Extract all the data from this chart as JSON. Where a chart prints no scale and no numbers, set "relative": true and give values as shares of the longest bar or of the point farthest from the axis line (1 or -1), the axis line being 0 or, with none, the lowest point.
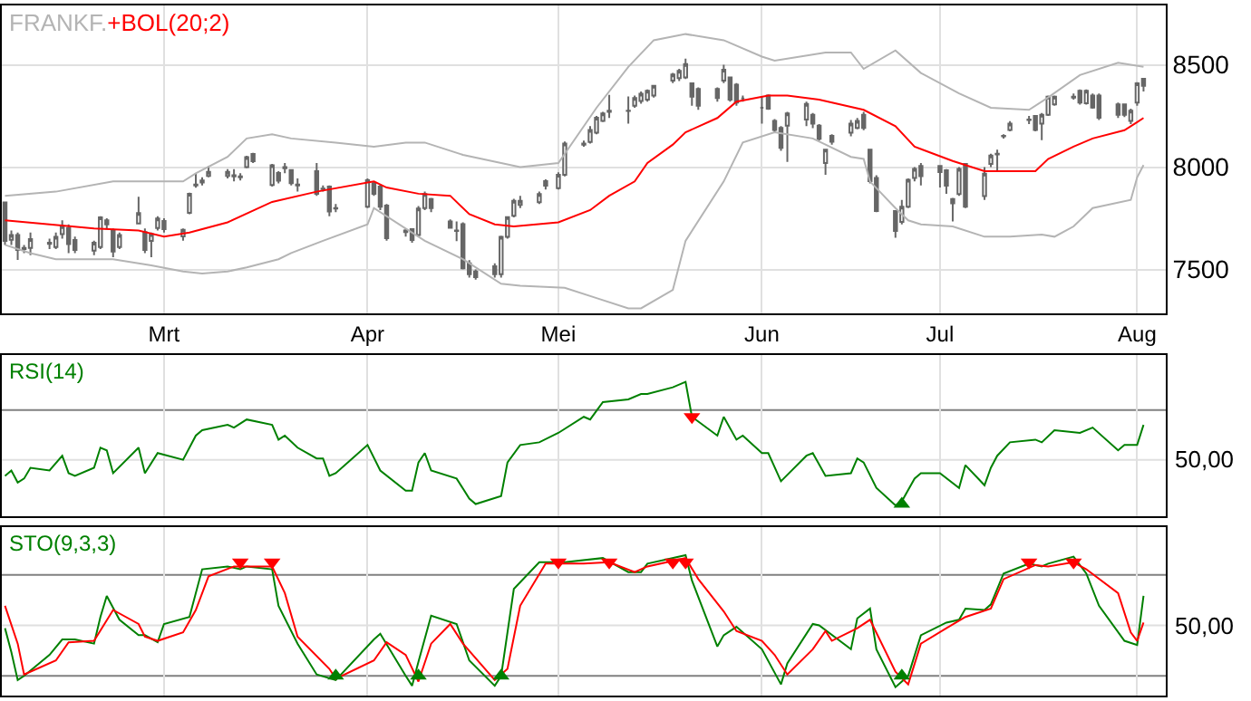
{
  "chart_data": [
    {
      "type": "candlestick",
      "title": "FRANKF.",
      "xlim": [
        "--02-03T12:00",
        "--08-05T12:00"
      ],
      "xticks": [
        {
          "value": "--03-01",
          "label": "Mrt"
        },
        {
          "value": "--04-02",
          "label": "Apr"
        },
        {
          "value": "--05-02",
          "label": "Mei"
        },
        {
          "value": "--06-03",
          "label": "Jun"
        },
        {
          "value": "--07-01",
          "label": "Jul"
        },
        {
          "value": "--08-01",
          "label": "Aug"
        }
      ],
      "ylim": [
        7286,
        8790
      ],
      "yticks": [
        7500,
        8000,
        8500
      ],
      "grid": true,
      "series": [
        {
          "type": "line",
          "color": "#b4b4b4",
          "x": [
            "--02-04",
            "--02-12",
            "--02-21",
            "--02-27",
            "--03-04",
            "--03-06",
            "--03-11",
            "--03-14",
            "--03-18",
            "--03-21",
            "--03-28",
            "--04-03",
            "--04-08",
            "--04-11",
            "--04-17",
            "--04-26",
            "--05-02",
            "--05-08",
            "--05-13",
            "--05-17",
            "--05-22",
            "--05-28",
            "--06-03",
            "--06-05",
            "--06-13",
            "--06-17",
            "--06-19",
            "--06-24",
            "--06-28",
            "--07-04",
            "--07-09",
            "--07-15",
            "--07-18",
            "--07-23",
            "--07-29",
            "--08-02"
          ],
          "values": [
            7860,
            7880,
            7930,
            7930,
            7930,
            7970,
            8050,
            8140,
            8160,
            8140,
            8120,
            8100,
            8120,
            8120,
            8060,
            8000,
            8020,
            8290,
            8490,
            8620,
            8650,
            8620,
            8540,
            8520,
            8560,
            8560,
            8480,
            8570,
            8460,
            8360,
            8290,
            8280,
            8340,
            8450,
            8510,
            8490
          ]
        },
        {
          "type": "line",
          "color": "#b4b4b4",
          "x": [
            "--02-04",
            "--02-08",
            "--02-12",
            "--02-18",
            "--02-21",
            "--02-27",
            "--03-04",
            "--03-07",
            "--03-11",
            "--03-14",
            "--03-19",
            "--03-21",
            "--03-26",
            "--04-02",
            "--04-03",
            "--04-08",
            "--04-11",
            "--04-17",
            "--04-23",
            "--04-26",
            "--05-03",
            "--05-08",
            "--05-13",
            "--05-15",
            "--05-20",
            "--05-22",
            "--05-28",
            "--05-31",
            "--06-05",
            "--06-11",
            "--06-13",
            "--06-17",
            "--06-19",
            "--06-20",
            "--06-24",
            "--06-26",
            "--06-28",
            "--07-03",
            "--07-08",
            "--07-12",
            "--07-17",
            "--07-19",
            "--07-22",
            "--07-25",
            "--07-31",
            "--08-01",
            "--08-02"
          ],
          "values": [
            7620,
            7580,
            7550,
            7550,
            7550,
            7520,
            7490,
            7480,
            7490,
            7510,
            7550,
            7580,
            7640,
            7720,
            7800,
            7700,
            7640,
            7550,
            7430,
            7420,
            7410,
            7360,
            7310,
            7310,
            7400,
            7640,
            7930,
            8120,
            8170,
            8140,
            8110,
            8050,
            8040,
            7930,
            7800,
            7740,
            7720,
            7710,
            7660,
            7660,
            7670,
            7660,
            7710,
            7800,
            7840,
            7950,
            8010
          ]
        },
        {
          "type": "line",
          "name": "+BOL(20;2)",
          "color": "#ff0000",
          "x": [
            "--02-04",
            "--02-11",
            "--02-18",
            "--02-25",
            "--03-01",
            "--03-05",
            "--03-11",
            "--03-18",
            "--03-25",
            "--04-03",
            "--04-05",
            "--04-10",
            "--04-15",
            "--04-18",
            "--04-22",
            "--04-25",
            "--05-02",
            "--05-07",
            "--05-10",
            "--05-14",
            "--05-16",
            "--05-20",
            "--05-22",
            "--05-27",
            "--05-30",
            "--06-04",
            "--06-07",
            "--06-12",
            "--06-19",
            "--06-24",
            "--06-27",
            "--07-03",
            "--07-08",
            "--07-11",
            "--07-16",
            "--07-18",
            "--07-22",
            "--07-25",
            "--07-30",
            "--08-01",
            "--08-02"
          ],
          "values": [
            7740,
            7720,
            7700,
            7690,
            7660,
            7680,
            7730,
            7830,
            7880,
            7930,
            7900,
            7870,
            7860,
            7770,
            7720,
            7710,
            7730,
            7790,
            7860,
            7930,
            8020,
            8110,
            8170,
            8240,
            8320,
            8350,
            8350,
            8330,
            8280,
            8200,
            8100,
            8030,
            7980,
            7980,
            7980,
            8040,
            8100,
            8140,
            8180,
            8220,
            8240
          ]
        },
        {
          "type": "candlestick",
          "color": "#666666",
          "x": [
            "--02-04",
            "--02-05",
            "--02-06",
            "--02-07",
            "--02-08",
            "--02-11",
            "--02-12",
            "--02-13",
            "--02-14",
            "--02-15",
            "--02-18",
            "--02-19",
            "--02-20",
            "--02-21",
            "--02-22",
            "--02-25",
            "--02-26",
            "--02-27",
            "--02-28",
            "--03-01",
            "--03-04",
            "--03-05",
            "--03-06",
            "--03-07",
            "--03-08",
            "--03-11",
            "--03-12",
            "--03-13",
            "--03-14",
            "--03-15",
            "--03-18",
            "--03-19",
            "--03-20",
            "--03-21",
            "--03-22",
            "--03-25",
            "--03-26",
            "--03-27",
            "--03-28",
            "--04-02",
            "--04-03",
            "--04-04",
            "--04-05",
            "--04-08",
            "--04-09",
            "--04-10",
            "--04-11",
            "--04-12",
            "--04-15",
            "--04-16",
            "--04-17",
            "--04-18",
            "--04-19",
            "--04-22",
            "--04-23",
            "--04-24",
            "--04-25",
            "--04-26",
            "--04-29",
            "--04-30",
            "--05-02",
            "--05-03",
            "--05-06",
            "--05-07",
            "--05-08",
            "--05-09",
            "--05-10",
            "--05-13",
            "--05-14",
            "--05-15",
            "--05-16",
            "--05-17",
            "--05-20",
            "--05-21",
            "--05-22",
            "--05-23",
            "--05-24",
            "--05-27",
            "--05-28",
            "--05-29",
            "--05-30",
            "--05-31",
            "--06-03",
            "--06-04",
            "--06-05",
            "--06-06",
            "--06-07",
            "--06-10",
            "--06-11",
            "--06-12",
            "--06-13",
            "--06-14",
            "--06-17",
            "--06-18",
            "--06-19",
            "--06-20",
            "--06-21",
            "--06-24",
            "--06-25",
            "--06-26",
            "--06-27",
            "--06-28",
            "--07-01",
            "--07-02",
            "--07-03",
            "--07-04",
            "--07-05",
            "--07-08",
            "--07-09",
            "--07-10",
            "--07-11",
            "--07-12",
            "--07-15",
            "--07-16",
            "--07-17",
            "--07-18",
            "--07-19",
            "--07-22",
            "--07-23",
            "--07-24",
            "--07-25",
            "--07-26",
            "--07-29",
            "--07-30",
            "--07-31",
            "--08-01",
            "--08-02"
          ],
          "ohlc": [
            [
              7827,
              7830,
              7620,
              7639
            ],
            [
              7645,
              7690,
              7620,
              7668
            ],
            [
              7668,
              7680,
              7546,
              7595
            ],
            [
              7600,
              7620,
              7580,
              7605
            ],
            [
              7605,
              7680,
              7570,
              7648
            ],
            [
              7625,
              7650,
              7600,
              7630
            ],
            [
              7610,
              7680,
              7600,
              7659
            ],
            [
              7673,
              7740,
              7650,
              7711
            ],
            [
              7702,
              7720,
              7580,
              7624
            ],
            [
              7644,
              7660,
              7580,
              7595
            ],
            [
              7592,
              7640,
              7570,
              7630
            ],
            [
              7610,
              7760,
              7600,
              7754
            ],
            [
              7740,
              7750,
              7700,
              7720
            ],
            [
              7688,
              7700,
              7560,
              7587
            ],
            [
              7610,
              7680,
              7600,
              7668
            ],
            [
              7725,
              7855,
              7720,
              7775
            ],
            [
              7682,
              7700,
              7580,
              7595
            ],
            [
              7639,
              7680,
              7560,
              7673
            ],
            [
              7702,
              7760,
              7690,
              7749
            ],
            [
              7737,
              7750,
              7680,
              7697
            ],
            [
              7662,
              7700,
              7640,
              7694
            ],
            [
              7777,
              7875,
              7770,
              7870
            ],
            [
              7910,
              7971,
              7899,
              7915
            ],
            [
              7925,
              7950,
              7910,
              7935
            ],
            [
              7957,
              8006,
              7950,
              7977
            ],
            [
              7957,
              7990,
              7945,
              7977
            ],
            [
              7955,
              7990,
              7930,
              7960
            ],
            [
              7955,
              7970,
              7935,
              7950
            ],
            [
              8000,
              8055,
              7995,
              8049
            ],
            [
              8064,
              8070,
              8020,
              8029
            ],
            [
              7913,
              8015,
              7905,
              8009
            ],
            [
              7971,
              7980,
              7920,
              7934
            ],
            [
              7995,
              8020,
              7970,
              8000
            ],
            [
              7986,
              7990,
              7910,
              7922
            ],
            [
              7915,
              7945,
              7880,
              7910
            ],
            [
              7980,
              8020,
              7860,
              7870
            ],
            [
              7895,
              7910,
              7880,
              7893
            ],
            [
              7905,
              7910,
              7760,
              7783
            ],
            [
              7800,
              7820,
              7780,
              7798
            ],
            [
              7806,
              7945,
              7800,
              7936
            ],
            [
              7922,
              7930,
              7860,
              7870
            ],
            [
              7905,
              7915,
              7790,
              7806
            ],
            [
              7812,
              7820,
              7640,
              7653
            ],
            [
              7690,
              7700,
              7660,
              7682
            ],
            [
              7697,
              7700,
              7630,
              7644
            ],
            [
              7668,
              7810,
              7660,
              7798
            ],
            [
              7800,
              7880,
              7790,
              7868
            ],
            [
              7844,
              7850,
              7780,
              7800
            ],
            [
              7735,
              7745,
              7700,
              7703
            ],
            [
              7690,
              7735,
              7638,
              7688
            ],
            [
              7721,
              7730,
              7500,
              7506
            ],
            [
              7530,
              7545,
              7460,
              7477
            ],
            [
              7490,
              7500,
              7450,
              7462
            ],
            [
              7515,
              7530,
              7460,
              7477
            ],
            [
              7477,
              7665,
              7460,
              7659
            ],
            [
              7659,
              7760,
              7650,
              7756
            ],
            [
              7762,
              7845,
              7755,
              7835
            ],
            [
              7815,
              7860,
              7800,
              7835
            ],
            [
              7829,
              7880,
              7820,
              7868
            ],
            [
              7932,
              7940,
              7890,
              7909
            ],
            [
              7897,
              7975,
              7890,
              7962
            ],
            [
              7962,
              8125,
              7955,
              8115
            ],
            [
              8110,
              8130,
              8100,
              8115
            ],
            [
              8123,
              8200,
              8115,
              8182
            ],
            [
              8168,
              8250,
              8160,
              8241
            ],
            [
              8226,
              8270,
              8220,
              8262
            ],
            [
              8270,
              8353,
              8240,
              8276
            ],
            [
              8276,
              8345,
              8212,
              8274
            ],
            [
              8300,
              8350,
              8290,
              8338
            ],
            [
              8323,
              8370,
              8310,
              8359
            ],
            [
              8330,
              8380,
              8320,
              8373
            ],
            [
              8350,
              8400,
              8340,
              8397
            ],
            [
              8423,
              8460,
              8410,
              8453
            ],
            [
              8435,
              8480,
              8420,
              8470
            ],
            [
              8438,
              8530,
              8430,
              8503
            ],
            [
              8409,
              8410,
              8300,
              8344
            ],
            [
              8382,
              8390,
              8280,
              8300
            ],
            [
              8382,
              8390,
              8320,
              8338
            ],
            [
              8423,
              8500,
              8410,
              8476
            ],
            [
              8438,
              8440,
              8320,
              8330
            ],
            [
              8403,
              8410,
              8300,
              8315
            ],
            [
              8335,
              8350,
              8320,
              8335
            ],
            [
              8290,
              8344,
              8212,
              8290
            ],
            [
              8350,
              8355,
              8280,
              8285
            ],
            [
              8226,
              8235,
              8170,
              8182
            ],
            [
              8191,
              8200,
              8080,
              8094
            ],
            [
              8203,
              8270,
              8026,
              8262
            ],
            [
              8232,
              8320,
              8200,
              8309
            ],
            [
              8256,
              8265,
              8190,
              8212
            ],
            [
              8203,
              8210,
              8130,
              8138
            ],
            [
              8020,
              8090,
              7962,
              8085
            ],
            [
              8153,
              8160,
              8110,
              8124
            ],
            [
              8168,
              8230,
              8150,
              8212
            ],
            [
              8191,
              8240,
              8185,
              8226
            ],
            [
              8256,
              8270,
              8180,
              8191
            ],
            [
              8085,
              8090,
              7920,
              7932
            ],
            [
              7947,
              7960,
              7780,
              7785
            ],
            [
              7785,
              7790,
              7655,
              7688
            ],
            [
              7732,
              7840,
              7720,
              7806
            ],
            [
              7806,
              7945,
              7800,
              7938
            ],
            [
              7947,
              8000,
              7930,
              7991
            ],
            [
              8006,
              8020,
              7910,
              7956
            ],
            [
              8006,
              8010,
              7900,
              7976
            ],
            [
              7985,
              7990,
              7870,
              7909
            ],
            [
              7844,
              7850,
              7735,
              7823
            ],
            [
              7868,
              8000,
              7860,
              7991
            ],
            [
              8015,
              8020,
              7800,
              7806
            ],
            [
              7859,
              8000,
              7840,
              7968
            ],
            [
              8015,
              8065,
              8000,
              8056
            ],
            [
              8062,
              8085,
              7985,
              8065
            ],
            [
              8150,
              8160,
              8140,
              8153
            ],
            [
              8182,
              8225,
              8175,
              8212
            ],
            [
              8230,
              8250,
              8210,
              8232
            ],
            [
              8250,
              8255,
              8175,
              8182
            ],
            [
              8212,
              8265,
              8132,
              8256
            ],
            [
              8256,
              8350,
              8250,
              8344
            ],
            [
              8306,
              8350,
              8300,
              8344
            ],
            [
              8340,
              8360,
              8330,
              8344
            ],
            [
              8373,
              8380,
              8305,
              8315
            ],
            [
              8312,
              8380,
              8305,
              8373
            ],
            [
              8350,
              8360,
              8285,
              8291
            ],
            [
              8350,
              8360,
              8230,
              8241
            ],
            [
              8306,
              8315,
              8240,
              8256
            ],
            [
              8306,
              8310,
              8245,
              8256
            ],
            [
              8226,
              8285,
              8210,
              8276
            ],
            [
              8315,
              8415,
              8300,
              8409
            ],
            [
              8432,
              8435,
              8370,
              8397
            ]
          ]
        }
      ]
    },
    {
      "type": "line",
      "title": "RSI(14)",
      "relative": true,
      "xlim": [
        "--02-03T12:00",
        "--08-05T12:00"
      ],
      "xticks": [
        {
          "value": "--03-01",
          "label": "Mrt"
        },
        {
          "value": "--04-02",
          "label": "Apr"
        },
        {
          "value": "--05-02",
          "label": "Mei"
        },
        {
          "value": "--06-03",
          "label": "Jun"
        },
        {
          "value": "--07-01",
          "label": "Jul"
        },
        {
          "value": "--08-01",
          "label": "Aug"
        }
      ],
      "grid": "x",
      "tick_labels": false,
      "ref_lines": [
        {
          "axis": "y",
          "value": 0.79,
          "color": "#808080"
        },
        {
          "axis": "y",
          "value": 0.42,
          "color": "#e0e0e0"
        }
      ],
      "annotations": [
        "50,00"
      ],
      "series": [
        {
          "color": "#008000",
          "x": [
            "--02-04",
            "--02-05",
            "--02-06",
            "--02-07",
            "--02-08",
            "--02-11",
            "--02-13",
            "--02-14",
            "--02-15",
            "--02-18",
            "--02-19",
            "--02-20",
            "--02-21",
            "--02-25",
            "--02-26",
            "--02-28",
            "--03-04",
            "--03-06",
            "--03-07",
            "--03-11",
            "--03-12",
            "--03-14",
            "--03-18",
            "--03-19",
            "--03-20",
            "--03-22",
            "--03-25",
            "--03-26",
            "--03-27",
            "--03-28",
            "--04-02",
            "--04-04",
            "--04-08",
            "--04-09",
            "--04-10",
            "--04-11",
            "--04-12",
            "--04-16",
            "--04-18",
            "--04-19",
            "--04-23",
            "--04-24",
            "--04-26",
            "--04-29",
            "--05-02",
            "--05-06",
            "--05-07",
            "--05-09",
            "--05-13",
            "--05-15",
            "--05-16",
            "--05-20",
            "--05-22",
            "--05-23",
            "--05-27",
            "--05-28",
            "--05-30",
            "--05-31",
            "--06-03",
            "--06-04",
            "--06-06",
            "--06-10",
            "--06-11",
            "--06-13",
            "--06-17",
            "--06-18",
            "--06-19",
            "--06-21",
            "--06-24",
            "--06-25",
            "--06-27",
            "--06-28",
            "--07-01",
            "--07-04",
            "--07-05",
            "--07-08",
            "--07-09",
            "--07-10",
            "--07-12",
            "--07-16",
            "--07-17",
            "--07-19",
            "--07-23",
            "--07-25",
            "--07-29",
            "--07-30",
            "--08-01",
            "--08-02"
          ],
          "values": [
            0.3,
            0.34,
            0.25,
            0.28,
            0.36,
            0.34,
            0.45,
            0.32,
            0.3,
            0.36,
            0.51,
            0.49,
            0.32,
            0.51,
            0.32,
            0.47,
            0.42,
            0.6,
            0.64,
            0.68,
            0.66,
            0.72,
            0.68,
            0.57,
            0.6,
            0.51,
            0.43,
            0.43,
            0.3,
            0.32,
            0.53,
            0.34,
            0.19,
            0.19,
            0.4,
            0.47,
            0.34,
            0.28,
            0.13,
            0.09,
            0.15,
            0.4,
            0.53,
            0.55,
            0.62,
            0.74,
            0.72,
            0.85,
            0.87,
            0.91,
            0.91,
            0.96,
            1,
            0.74,
            0.6,
            0.74,
            0.57,
            0.6,
            0.47,
            0.47,
            0.26,
            0.45,
            0.47,
            0.3,
            0.32,
            0.43,
            0.4,
            0.21,
            0.08,
            0.11,
            0.28,
            0.32,
            0.32,
            0.21,
            0.38,
            0.23,
            0.36,
            0.45,
            0.55,
            0.57,
            0.55,
            0.64,
            0.62,
            0.66,
            0.49,
            0.53,
            0.53,
            0.68
          ]
        },
        {
          "type": "scatter",
          "marker": "triangle",
          "color": "#ff0000",
          "x": [
            "--05-23"
          ],
          "values": [
            0.74
          ]
        },
        {
          "type": "scatter",
          "marker": "triangle",
          "color": "#008000",
          "x": [
            "--06-25"
          ],
          "values": [
            0.09
          ]
        }
      ]
    },
    {
      "type": "line",
      "title": "STO(9,3,3)",
      "relative": true,
      "xlim": [
        "--02-03T12:00",
        "--08-05T12:00"
      ],
      "xticks": [
        {
          "value": "--03-01",
          "label": "Mrt"
        },
        {
          "value": "--04-02",
          "label": "Apr"
        },
        {
          "value": "--05-02",
          "label": "Mei"
        },
        {
          "value": "--06-03",
          "label": "Jun"
        },
        {
          "value": "--07-01",
          "label": "Jul"
        },
        {
          "value": "--08-01",
          "label": "Aug"
        }
      ],
      "grid": "x",
      "tick_labels": false,
      "ref_lines": [
        {
          "axis": "y",
          "value": 0.86,
          "color": "#808080"
        },
        {
          "axis": "y",
          "value": 0.14,
          "color": "#808080"
        },
        {
          "axis": "y",
          "value": 0.5,
          "color": "#e0e0e0"
        }
      ],
      "annotations": [
        "50,00"
      ],
      "series": [
        {
          "color": "#008000",
          "x": [
            "--02-04",
            "--02-05",
            "--02-06",
            "--02-07",
            "--02-11",
            "--02-13",
            "--02-15",
            "--02-18",
            "--02-19",
            "--02-20",
            "--02-22",
            "--02-25",
            "--02-26",
            "--02-28",
            "--03-01",
            "--03-05",
            "--03-07",
            "--03-11",
            "--03-13",
            "--03-14",
            "--03-18",
            "--03-19",
            "--03-22",
            "--03-25",
            "--03-28",
            "--04-03",
            "--04-04",
            "--04-08",
            "--04-09",
            "--04-10",
            "--04-12",
            "--04-16",
            "--04-18",
            "--04-22",
            "--04-23",
            "--04-25",
            "--04-29",
            "--05-03",
            "--05-09",
            "--05-13",
            "--05-15",
            "--05-16",
            "--05-22",
            "--05-23",
            "--05-27",
            "--05-28",
            "--05-30",
            "--06-03",
            "--06-06",
            "--06-07",
            "--06-11",
            "--06-12",
            "--06-17",
            "--06-18",
            "--06-20",
            "--06-21",
            "--06-24",
            "--06-26",
            "--06-28",
            "--07-02",
            "--07-04",
            "--07-05",
            "--07-08",
            "--07-09",
            "--07-11",
            "--07-15",
            "--07-17",
            "--07-18",
            "--07-22",
            "--07-24",
            "--07-26",
            "--07-30",
            "--08-01",
            "--08-02"
          ],
          "values": [
            0.48,
            0.31,
            0.11,
            0.14,
            0.29,
            0.4,
            0.4,
            0.37,
            0.56,
            0.71,
            0.54,
            0.43,
            0.43,
            0.38,
            0.51,
            0.56,
            0.9,
            0.92,
            0.9,
            0.92,
            0.9,
            0.64,
            0.37,
            0.15,
            0.11,
            0.4,
            0.44,
            0.14,
            0.07,
            0.24,
            0.57,
            0.51,
            0.25,
            0.07,
            0.14,
            0.76,
            0.95,
            0.95,
            0.98,
            0.88,
            0.88,
            0.94,
            1,
            0.82,
            0.35,
            0.43,
            0.49,
            0.33,
            0.08,
            0.23,
            0.51,
            0.5,
            0.33,
            0.55,
            0.62,
            0.33,
            0.06,
            0.14,
            0.43,
            0.52,
            0.54,
            0.62,
            0.61,
            0.65,
            0.87,
            0.94,
            0.92,
            0.94,
            0.99,
            0.87,
            0.64,
            0.39,
            0.36,
            0.71
          ]
        },
        {
          "color": "#ff0000",
          "x": [
            "--02-04",
            "--02-06",
            "--02-07",
            "--02-12",
            "--02-14",
            "--02-18",
            "--02-21",
            "--02-25",
            "--02-26",
            "--02-28",
            "--03-04",
            "--03-06",
            "--03-08",
            "--03-12",
            "--03-15",
            "--03-18",
            "--03-20",
            "--03-22",
            "--03-27",
            "--03-28",
            "--04-03",
            "--04-05",
            "--04-08",
            "--04-10",
            "--04-12",
            "--04-15",
            "--04-17",
            "--04-22",
            "--04-24",
            "--04-26",
            "--04-30",
            "--05-06",
            "--05-10",
            "--05-14",
            "--05-16",
            "--05-22",
            "--05-24",
            "--05-28",
            "--05-30",
            "--06-03",
            "--06-05",
            "--06-07",
            "--06-11",
            "--06-13",
            "--06-14",
            "--06-18",
            "--06-20",
            "--06-24",
            "--06-26",
            "--06-28",
            "--07-02",
            "--07-05",
            "--07-09",
            "--07-11",
            "--07-16",
            "--07-18",
            "--07-22",
            "--07-24",
            "--07-29",
            "--07-31",
            "--08-01",
            "--08-02"
          ],
          "values": [
            0.64,
            0.37,
            0.15,
            0.25,
            0.38,
            0.39,
            0.61,
            0.51,
            0.42,
            0.39,
            0.45,
            0.61,
            0.85,
            0.92,
            0.92,
            0.92,
            0.73,
            0.42,
            0.19,
            0.12,
            0.25,
            0.38,
            0.29,
            0.1,
            0.37,
            0.51,
            0.37,
            0.11,
            0.19,
            0.64,
            0.94,
            0.94,
            0.95,
            0.88,
            0.92,
            0.98,
            0.83,
            0.6,
            0.46,
            0.39,
            0.29,
            0.15,
            0.33,
            0.46,
            0.39,
            0.48,
            0.54,
            0.17,
            0.08,
            0.37,
            0.48,
            0.56,
            0.62,
            0.83,
            0.93,
            0.92,
            0.95,
            0.9,
            0.73,
            0.45,
            0.39,
            0.52
          ]
        },
        {
          "type": "scatter",
          "marker": "triangle",
          "color": "#ff0000",
          "x": [
            "--03-13",
            "--03-18",
            "--05-02",
            "--05-10",
            "--05-20",
            "--05-22",
            "--07-15",
            "--07-22"
          ],
          "values": [
            0.95,
            0.95,
            0.95,
            0.95,
            0.95,
            0.95,
            0.95,
            0.95
          ]
        },
        {
          "type": "scatter",
          "marker": "triangle",
          "color": "#008000",
          "x": [
            "--03-28",
            "--04-10",
            "--04-23",
            "--06-25"
          ],
          "values": [
            0.14,
            0.14,
            0.14,
            0.14
          ]
        }
      ]
    }
  ]
}
